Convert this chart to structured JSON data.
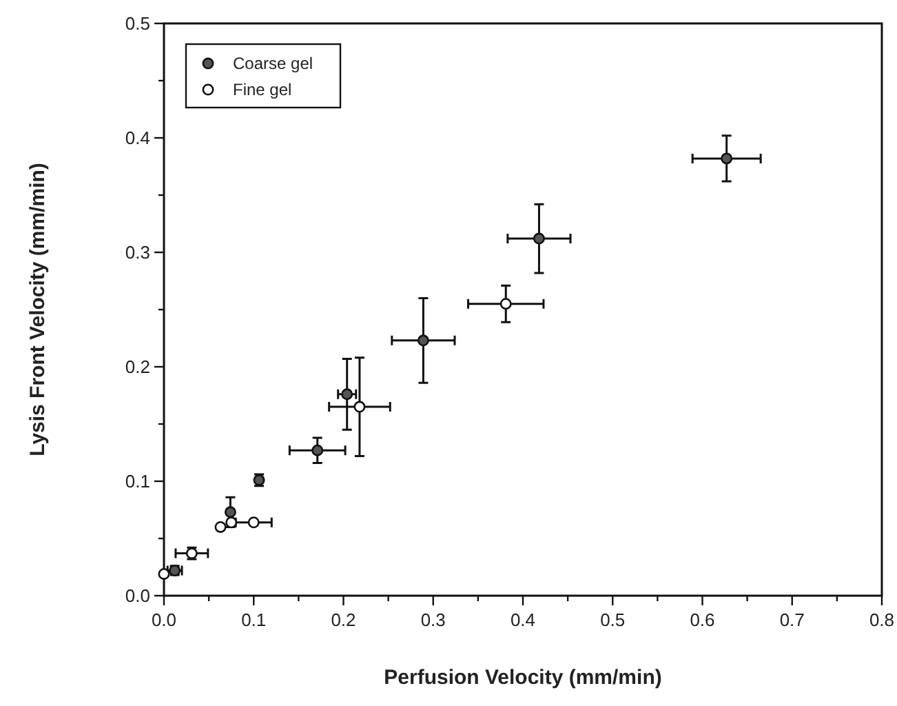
{
  "chart_data": {
    "type": "scatter",
    "xlabel": "Perfusion Velocity (mm/min)",
    "ylabel": "Lysis Front Velocity (mm/min)",
    "xlim": [
      0,
      0.8
    ],
    "ylim": [
      0,
      0.5
    ],
    "xticks": [
      {
        "value": 0,
        "label": "0.0"
      },
      {
        "value": 0.05,
        "label": null
      },
      0.1,
      {
        "value": 0.15,
        "label": null
      },
      0.2,
      {
        "value": 0.25,
        "label": null
      },
      0.3,
      {
        "value": 0.35,
        "label": null
      },
      0.4,
      {
        "value": 0.45,
        "label": null
      },
      0.5,
      {
        "value": 0.55,
        "label": null
      },
      0.6,
      {
        "value": 0.65,
        "label": null
      },
      0.7,
      {
        "value": 0.75,
        "label": null
      },
      0.8
    ],
    "yticks": [
      {
        "value": 0,
        "label": "0.0"
      },
      {
        "value": 0.05,
        "label": null
      },
      0.1,
      {
        "value": 0.15,
        "label": null
      },
      0.2,
      {
        "value": 0.25,
        "label": null
      },
      0.3,
      {
        "value": 0.35,
        "label": null
      },
      0.4,
      {
        "value": 0.45,
        "label": null
      },
      0.5
    ],
    "grid": false,
    "legend": "top left",
    "marker": "circle",
    "series": [
      {
        "name": "Coarse gel",
        "color": "#555555",
        "x": [
          0.627,
          0.418,
          0.289,
          0.204,
          0.171,
          0.106,
          0.074,
          0.012
        ],
        "values": [
          0.382,
          0.312,
          0.223,
          0.176,
          0.127,
          0.101,
          0.073,
          0.022
        ],
        "errors": [
          0.02,
          0.03,
          0.037,
          0.031,
          0.011,
          0.005,
          0.013,
          0.004
        ],
        "xerrors": [
          0.038,
          0.035,
          0.035,
          0.01,
          0.031,
          null,
          null,
          0.008
        ]
      },
      {
        "name": "Fine gel",
        "color": "#ffffff",
        "x": [
          0.381,
          0.218,
          0.1,
          0.075,
          0.063,
          0.031,
          0
        ],
        "values": [
          0.255,
          0.165,
          0.064,
          0.064,
          0.06,
          0.037,
          0.019
        ],
        "errors": [
          0.016,
          0.043,
          null,
          null,
          null,
          0.005,
          null
        ],
        "xerrors": [
          0.042,
          0.034,
          0.02,
          null,
          null,
          0.018,
          null
        ]
      }
    ]
  }
}
